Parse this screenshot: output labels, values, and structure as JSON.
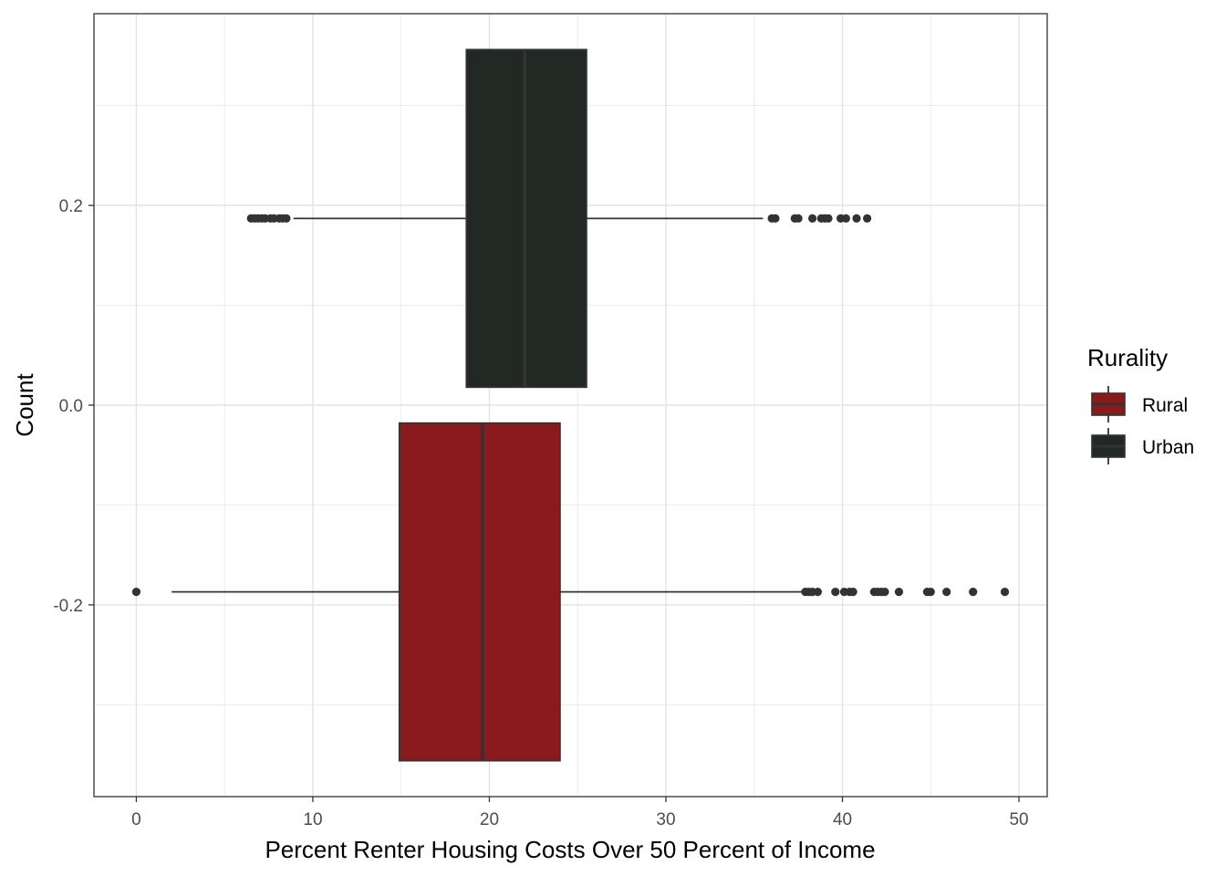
{
  "chart_data": {
    "type": "boxplot",
    "orientation": "horizontal",
    "xlabel": "Percent Renter Housing Costs Over 50 Percent of Income",
    "ylabel": "Count",
    "xlim": [
      -2.4,
      51.6
    ],
    "ylim": [
      -0.392,
      0.392
    ],
    "x_ticks": [
      0,
      10,
      20,
      30,
      40,
      50
    ],
    "x_tick_labels": [
      "0",
      "10",
      "20",
      "30",
      "40",
      "50"
    ],
    "y_ticks": [
      -0.2,
      0.0,
      0.2
    ],
    "y_tick_labels": [
      "-0.2",
      "0.0",
      "0.2"
    ],
    "grid": true,
    "legend": {
      "title": "Rurality",
      "position": "right"
    },
    "series": [
      {
        "name": "Rural",
        "color": "#8b1a1c",
        "y_center": -0.187,
        "y_min": -0.356,
        "y_max": -0.018,
        "whisker_low": 2.0,
        "q1": 14.9,
        "median": 19.6,
        "q3": 24.0,
        "whisker_high": 37.9,
        "outliers": [
          0.0,
          37.9,
          38.1,
          38.3,
          38.6,
          39.6,
          40.1,
          40.4,
          40.6,
          41.8,
          42.0,
          42.2,
          42.4,
          43.2,
          44.8,
          45.0,
          45.9,
          47.4,
          49.2
        ]
      },
      {
        "name": "Urban",
        "color": "#222924",
        "y_center": 0.187,
        "y_min": 0.018,
        "y_max": 0.356,
        "whisker_low": 8.9,
        "q1": 18.7,
        "median": 22.0,
        "q3": 25.5,
        "whisker_high": 35.5,
        "outliers": [
          6.5,
          6.7,
          6.9,
          7.1,
          7.3,
          7.6,
          7.8,
          8.1,
          8.3,
          8.5,
          36.0,
          36.2,
          37.3,
          37.5,
          38.3,
          38.8,
          39.0,
          39.2,
          39.9,
          40.2,
          40.8,
          41.4
        ]
      }
    ]
  }
}
